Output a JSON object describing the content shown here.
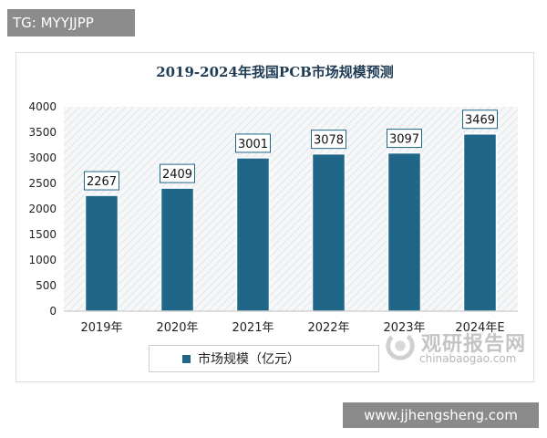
{
  "header": {
    "tag": "TG: MYYJJPP"
  },
  "chart_data": {
    "type": "bar",
    "title": "2019-2024年我国PCB市场规模预测",
    "categories": [
      "2019年",
      "2020年",
      "2021年",
      "2022年",
      "2023年",
      "2024年E"
    ],
    "series": [
      {
        "name": "市场规模（亿元）",
        "values": [
          2267,
          2409,
          3001,
          3078,
          3097,
          3469
        ]
      }
    ],
    "yticks": [
      "0",
      "500",
      "1000",
      "1500",
      "2000",
      "2500",
      "3000",
      "3500",
      "4000"
    ],
    "ylim": [
      0,
      4000
    ],
    "grid": false,
    "legend_position": "bottom",
    "bar_color": "#1f6688",
    "background_pattern": "diagonal-hatch"
  },
  "watermark": {
    "name": "观研报告网",
    "url": "chinabaogao.com",
    "site": "www.jjhengsheng.com"
  }
}
